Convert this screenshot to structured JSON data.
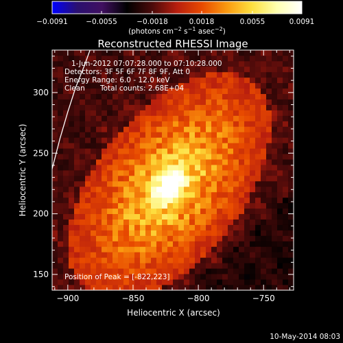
{
  "chart_data": {
    "type": "heatmap",
    "title": "Reconstructed RHESSI Image",
    "xlabel": "Heliocentric X (arcsec)",
    "ylabel": "Heliocentric Y (arcsec)",
    "xlim": [
      -912,
      -727
    ],
    "ylim": [
      137,
      335
    ],
    "x_ticks": [
      {
        "value": -900,
        "label": "−900"
      },
      {
        "value": -850,
        "label": "−850"
      },
      {
        "value": -800,
        "label": "−800"
      },
      {
        "value": -750,
        "label": "−750"
      }
    ],
    "y_ticks": [
      {
        "value": 150,
        "label": "150"
      },
      {
        "value": 200,
        "label": "200"
      },
      {
        "value": 250,
        "label": "250"
      },
      {
        "value": 300,
        "label": "300"
      }
    ],
    "colorbar": {
      "range": [
        -0.0091,
        0.0091
      ],
      "ticks": [
        {
          "value": -0.0091,
          "label": "−0.0091"
        },
        {
          "value": -0.0055,
          "label": "−0.0055"
        },
        {
          "value": -0.0018,
          "label": "−0.0018"
        },
        {
          "value": 0.0018,
          "label": "0.0018"
        },
        {
          "value": 0.0055,
          "label": "0.0055"
        },
        {
          "value": 0.0091,
          "label": "0.0091"
        }
      ],
      "units_label_prefix": "(photons cm",
      "units_exp1": "−2",
      "units_mid1": " s",
      "units_exp2": "−1",
      "units_mid2": " asec",
      "units_exp3": "−2",
      "units_suffix": ")",
      "colors": [
        "#0000ff",
        "#2a1070",
        "#401060",
        "#000000",
        "#4a0a0a",
        "#b81e0e",
        "#e84a00",
        "#fa9a10",
        "#fde040",
        "#ffffb0",
        "#ffffff"
      ]
    },
    "source": {
      "peak_x": -822,
      "peak_y": 223,
      "peak_value": 0.0091,
      "core_sigma_major": 9.5,
      "core_sigma_minor": 5.5,
      "halo_sigma_major": 52,
      "halo_sigma_minor": 28,
      "orientation_deg": 55
    },
    "solar_limb_points": [
      {
        "x": -912,
        "y": 237
      },
      {
        "x": -906,
        "y": 262
      },
      {
        "x": -900,
        "y": 284
      },
      {
        "x": -894,
        "y": 304
      },
      {
        "x": -887,
        "y": 323
      },
      {
        "x": -883,
        "y": 335
      }
    ]
  },
  "annotations": {
    "time_range": "1-Jun-2012 07:07:28.000 to 07:10:28.000",
    "detectors": "Detectors: 3F 5F 6F 7F 8F 9F, Att 0",
    "energy_range": "Energy Range: 6.0 - 12.0 keV",
    "algorithm": "Clean",
    "total_counts": "Total counts: 2.68E+04",
    "peak_position": "Position of Peak = [-822,223]"
  },
  "footer": {
    "timestamp": "10-May-2014 08:03"
  }
}
